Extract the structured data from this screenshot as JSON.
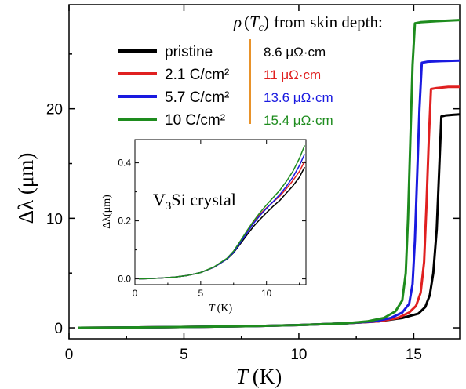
{
  "chart_data": [
    {
      "type": "line",
      "xlabel_symbol": "T",
      "xlabel_unit": "(K)",
      "ylabel": "Δλ (μm)",
      "xlim": [
        0,
        17
      ],
      "ylim": [
        -1,
        29.5
      ],
      "xticks": [
        0,
        5,
        10,
        15
      ],
      "yticks": [
        0,
        10,
        20
      ],
      "xtick_labels": [
        "0",
        "5",
        "10",
        "15"
      ],
      "ytick_labels": [
        "0",
        "10",
        "20"
      ],
      "legend_position": "top-left",
      "annotation_title": "ρ(Tc) from skin depth:",
      "series": [
        {
          "name": "pristine",
          "color": "#000000",
          "resistivity": "8.6 μΩ·cm",
          "x": [
            0.4,
            2,
            4,
            6,
            8,
            10,
            12,
            13.5,
            14.5,
            15.2,
            15.5,
            15.7,
            15.85,
            16.0,
            16.1,
            16.2,
            16.4,
            16.7,
            17
          ],
          "y": [
            0,
            0.02,
            0.05,
            0.1,
            0.15,
            0.25,
            0.4,
            0.6,
            0.9,
            1.3,
            1.9,
            3.0,
            5.0,
            9.0,
            14.0,
            19.3,
            19.4,
            19.45,
            19.5
          ]
        },
        {
          "name": "2.1 C/cm²",
          "color": "#e02020",
          "resistivity": "11 μΩ·cm",
          "x": [
            0.4,
            2,
            4,
            6,
            8,
            10,
            12,
            13.5,
            14.3,
            14.8,
            15.1,
            15.3,
            15.45,
            15.55,
            15.65,
            15.75,
            16,
            16.5,
            17
          ],
          "y": [
            0,
            0.02,
            0.05,
            0.1,
            0.15,
            0.25,
            0.4,
            0.6,
            0.9,
            1.4,
            2.0,
            3.2,
            6.0,
            11.0,
            17.0,
            21.8,
            21.9,
            22.0,
            22.0
          ]
        },
        {
          "name": "5.7 C/cm²",
          "color": "#1a1ae0",
          "resistivity": "13.6 μΩ·cm",
          "x": [
            0.4,
            2,
            4,
            6,
            8,
            10,
            12,
            13.3,
            14.0,
            14.5,
            14.8,
            14.95,
            15.05,
            15.15,
            15.25,
            15.35,
            15.6,
            16.2,
            17
          ],
          "y": [
            0,
            0.02,
            0.05,
            0.1,
            0.15,
            0.25,
            0.4,
            0.6,
            0.9,
            1.4,
            2.2,
            4.0,
            8.0,
            14.0,
            20.0,
            24.2,
            24.3,
            24.35,
            24.4
          ]
        },
        {
          "name": "10 C/cm²",
          "color": "#1e8c1e",
          "resistivity": "15.4 μΩ·cm",
          "x": [
            0.4,
            2,
            4,
            6,
            8,
            10,
            12,
            13.0,
            13.7,
            14.2,
            14.5,
            14.65,
            14.75,
            14.85,
            14.95,
            15.05,
            15.3,
            16,
            17
          ],
          "y": [
            0,
            0.02,
            0.05,
            0.1,
            0.15,
            0.25,
            0.4,
            0.6,
            0.9,
            1.5,
            2.5,
            5.0,
            10.0,
            17.0,
            24.0,
            27.8,
            27.9,
            28.0,
            28.1
          ]
        }
      ]
    },
    {
      "type": "line",
      "title_main": "V",
      "title_sub": "3",
      "title_rest": "Si crystal",
      "xlabel_symbol": "T",
      "xlabel_unit": "(K)",
      "ylabel": "Δλ(μm)",
      "xlim": [
        0,
        13
      ],
      "ylim": [
        -0.02,
        0.48
      ],
      "xticks": [
        0,
        5,
        10
      ],
      "yticks": [
        0.0,
        0.2,
        0.4
      ],
      "xtick_labels": [
        "0",
        "5",
        "10"
      ],
      "ytick_labels": [
        "0.0",
        "0.2",
        "0.4"
      ],
      "series": [
        {
          "name": "pristine",
          "color": "#000000",
          "x": [
            0.3,
            1,
            2,
            3,
            4,
            5,
            6,
            7,
            7.5,
            8,
            8.5,
            9,
            9.5,
            10,
            10.5,
            11,
            11.5,
            12,
            12.5,
            12.9
          ],
          "y": [
            0,
            0.001,
            0.003,
            0.006,
            0.012,
            0.022,
            0.04,
            0.068,
            0.09,
            0.12,
            0.15,
            0.18,
            0.205,
            0.228,
            0.25,
            0.27,
            0.295,
            0.32,
            0.35,
            0.385
          ]
        },
        {
          "name": "2.1 C/cm²",
          "color": "#e02020",
          "x": [
            0.3,
            1,
            2,
            3,
            4,
            5,
            6,
            7,
            7.5,
            8,
            8.5,
            9,
            9.5,
            10,
            10.5,
            11,
            11.5,
            12,
            12.5,
            12.9
          ],
          "y": [
            0,
            0.001,
            0.003,
            0.006,
            0.012,
            0.022,
            0.04,
            0.07,
            0.095,
            0.128,
            0.162,
            0.195,
            0.222,
            0.245,
            0.265,
            0.285,
            0.31,
            0.338,
            0.37,
            0.405
          ]
        },
        {
          "name": "5.7 C/cm²",
          "color": "#1a1ae0",
          "x": [
            0.3,
            1,
            2,
            3,
            4,
            5,
            6,
            7,
            7.5,
            8,
            8.5,
            9,
            9.5,
            10,
            10.5,
            11,
            11.5,
            12,
            12.5,
            12.9
          ],
          "y": [
            0,
            0.001,
            0.003,
            0.006,
            0.012,
            0.022,
            0.04,
            0.069,
            0.092,
            0.124,
            0.157,
            0.19,
            0.218,
            0.243,
            0.266,
            0.29,
            0.318,
            0.35,
            0.39,
            0.43
          ]
        },
        {
          "name": "10 C/cm²",
          "color": "#1e8c1e",
          "x": [
            0.3,
            1,
            2,
            3,
            4,
            5,
            6,
            7,
            7.5,
            8,
            8.5,
            9,
            9.5,
            10,
            10.5,
            11,
            11.5,
            12,
            12.5,
            12.9
          ],
          "y": [
            0,
            0.001,
            0.003,
            0.006,
            0.012,
            0.022,
            0.041,
            0.071,
            0.096,
            0.13,
            0.165,
            0.198,
            0.228,
            0.255,
            0.28,
            0.305,
            0.335,
            0.37,
            0.415,
            0.46
          ]
        }
      ]
    }
  ],
  "legend": {
    "rho_symbol": "ρ",
    "rho_open": "(",
    "rho_T": "T",
    "rho_c": "c",
    "rho_close": ")",
    "rho_rest": "from skin depth:"
  }
}
